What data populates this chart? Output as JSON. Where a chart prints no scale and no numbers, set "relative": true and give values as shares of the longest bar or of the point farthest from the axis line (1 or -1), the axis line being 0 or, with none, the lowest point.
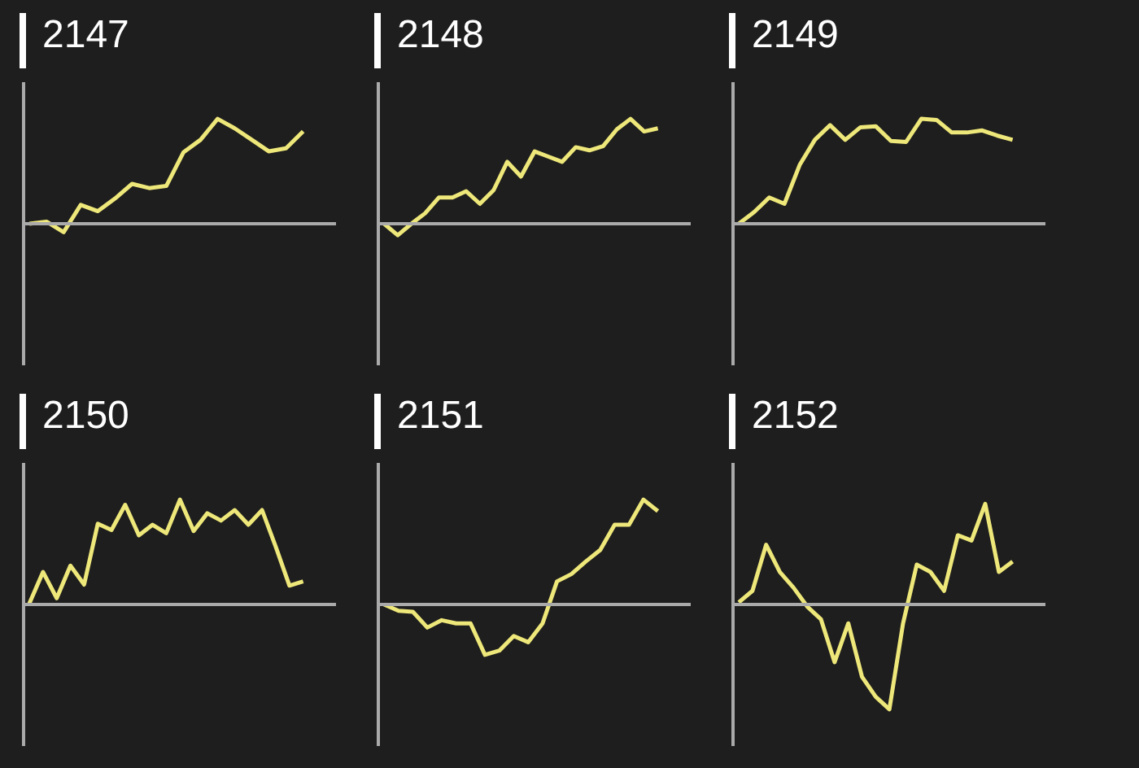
{
  "chart_data": [
    {
      "type": "line",
      "title": "2147",
      "relative": true,
      "color": "#eee77a",
      "grid": false,
      "categories": [
        null,
        null,
        null,
        null,
        null,
        null,
        null,
        null,
        null,
        null,
        null,
        null,
        null,
        null,
        null,
        null,
        null
      ],
      "values": [
        0,
        0.02,
        -0.08,
        0.18,
        0.12,
        0.24,
        0.38,
        0.34,
        0.36,
        0.68,
        0.8,
        1,
        0.91,
        0.8,
        0.69,
        0.72,
        0.88
      ]
    },
    {
      "type": "line",
      "title": "2148",
      "relative": true,
      "color": "#eee77a",
      "grid": false,
      "categories": [
        null,
        null,
        null,
        null,
        null,
        null,
        null,
        null,
        null,
        null,
        null,
        null,
        null,
        null,
        null,
        null,
        null,
        null,
        null,
        null,
        null
      ],
      "values": [
        0,
        -0.11,
        0,
        0.1,
        0.25,
        0.25,
        0.31,
        0.19,
        0.32,
        0.59,
        0.45,
        0.69,
        0.64,
        0.59,
        0.73,
        0.7,
        0.74,
        0.9,
        1,
        0.88,
        0.91
      ]
    },
    {
      "type": "line",
      "title": "2149",
      "relative": true,
      "color": "#eee77a",
      "grid": false,
      "categories": [
        null,
        null,
        null,
        null,
        null,
        null,
        null,
        null,
        null,
        null,
        null,
        null,
        null,
        null,
        null,
        null,
        null,
        null,
        null
      ],
      "values": [
        0,
        0.11,
        0.25,
        0.19,
        0.56,
        0.8,
        0.94,
        0.8,
        0.92,
        0.93,
        0.79,
        0.78,
        1,
        0.99,
        0.87,
        0.87,
        0.89,
        0.84,
        0.8
      ]
    },
    {
      "type": "line",
      "title": "2150",
      "relative": true,
      "color": "#eee77a",
      "grid": false,
      "categories": [
        null,
        null,
        null,
        null,
        null,
        null,
        null,
        null,
        null,
        null,
        null,
        null,
        null,
        null,
        null,
        null,
        null,
        null,
        null,
        null,
        null
      ],
      "values": [
        0.01,
        0.31,
        0.06,
        0.37,
        0.19,
        0.77,
        0.71,
        0.95,
        0.66,
        0.76,
        0.68,
        1,
        0.7,
        0.87,
        0.8,
        0.9,
        0.76,
        0.9,
        0.55,
        0.18,
        0.22
      ]
    },
    {
      "type": "line",
      "title": "2151",
      "relative": true,
      "color": "#eee77a",
      "grid": false,
      "categories": [
        null,
        null,
        null,
        null,
        null,
        null,
        null,
        null,
        null,
        null,
        null,
        null,
        null,
        null,
        null,
        null,
        null,
        null,
        null,
        null
      ],
      "values": [
        0,
        -0.06,
        -0.07,
        -0.22,
        -0.15,
        -0.18,
        -0.18,
        -0.48,
        -0.44,
        -0.3,
        -0.36,
        -0.18,
        0.22,
        0.29,
        0.41,
        0.52,
        0.76,
        0.76,
        1,
        0.89
      ]
    },
    {
      "type": "line",
      "title": "2152",
      "relative": true,
      "color": "#eee77a",
      "grid": false,
      "categories": [
        null,
        null,
        null,
        null,
        null,
        null,
        null,
        null,
        null,
        null,
        null,
        null,
        null,
        null,
        null,
        null,
        null,
        null,
        null,
        null,
        null
      ],
      "values": [
        0.02,
        0.13,
        0.57,
        0.31,
        0.16,
        -0.02,
        -0.14,
        -0.55,
        -0.18,
        -0.69,
        -0.88,
        -1,
        -0.18,
        0.38,
        0.31,
        0.13,
        0.66,
        0.61,
        0.96,
        0.31,
        0.41
      ]
    }
  ]
}
